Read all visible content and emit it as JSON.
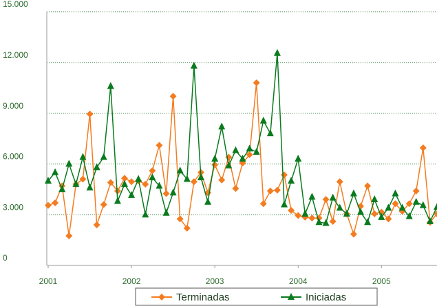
{
  "chart_data": {
    "type": "line",
    "categories": [
      "2001",
      null,
      null,
      null,
      null,
      null,
      null,
      null,
      null,
      null,
      null,
      null,
      "2002",
      null,
      null,
      null,
      null,
      null,
      null,
      null,
      null,
      null,
      null,
      null,
      "2003",
      null,
      null,
      null,
      null,
      null,
      null,
      null,
      null,
      null,
      null,
      null,
      "2004",
      null,
      null,
      null,
      null,
      null,
      null,
      null,
      null,
      null,
      null,
      null,
      "2005",
      null,
      null,
      null,
      null,
      null,
      null,
      null,
      null
    ],
    "series": [
      {
        "name": "Terminadas",
        "color": "#f47c20",
        "marker": "diamond",
        "values": [
          3550,
          3700,
          4700,
          1750,
          4800,
          5100,
          8950,
          2400,
          3600,
          4900,
          4400,
          5150,
          4950,
          5000,
          4800,
          5600,
          7100,
          4250,
          10000,
          2750,
          2200,
          4950,
          5500,
          4300,
          5950,
          5050,
          6400,
          4550,
          6050,
          6550,
          10800,
          3650,
          4400,
          4450,
          5350,
          3250,
          2950,
          2850,
          2800,
          2800,
          3900,
          2600,
          4950,
          3050,
          1850,
          3500,
          4700,
          3050,
          3150,
          2750,
          3650,
          3200,
          3650,
          4400,
          6950,
          2550,
          3050
        ]
      },
      {
        "name": "Iniciadas",
        "color": "#0a7a1e",
        "marker": "triangle",
        "values": [
          5000,
          5500,
          4500,
          6000,
          4800,
          6400,
          4600,
          5800,
          6400,
          10600,
          3800,
          4800,
          4150,
          5100,
          3000,
          5200,
          4700,
          3100,
          4300,
          5600,
          5100,
          11800,
          5200,
          3750,
          6300,
          8200,
          5900,
          6800,
          6300,
          6900,
          6700,
          8550,
          7800,
          12550,
          3600,
          5000,
          6300,
          3050,
          4050,
          2550,
          2500,
          4000,
          3400,
          3050,
          4250,
          3150,
          2550,
          3900,
          2850,
          3400,
          4250,
          3400,
          2900,
          3750,
          3550,
          2600,
          3450
        ]
      }
    ],
    "ylim": [
      0,
      15000
    ],
    "yticks": [
      0,
      {
        "value": 3000,
        "label": "3.000"
      },
      {
        "value": 6000,
        "label": "6.000"
      },
      {
        "value": 9000,
        "label": "9.000"
      },
      {
        "value": 12000,
        "label": "12.000"
      },
      {
        "value": 15000,
        "label": "15.000"
      }
    ],
    "grid": true,
    "legend": "bottom"
  }
}
